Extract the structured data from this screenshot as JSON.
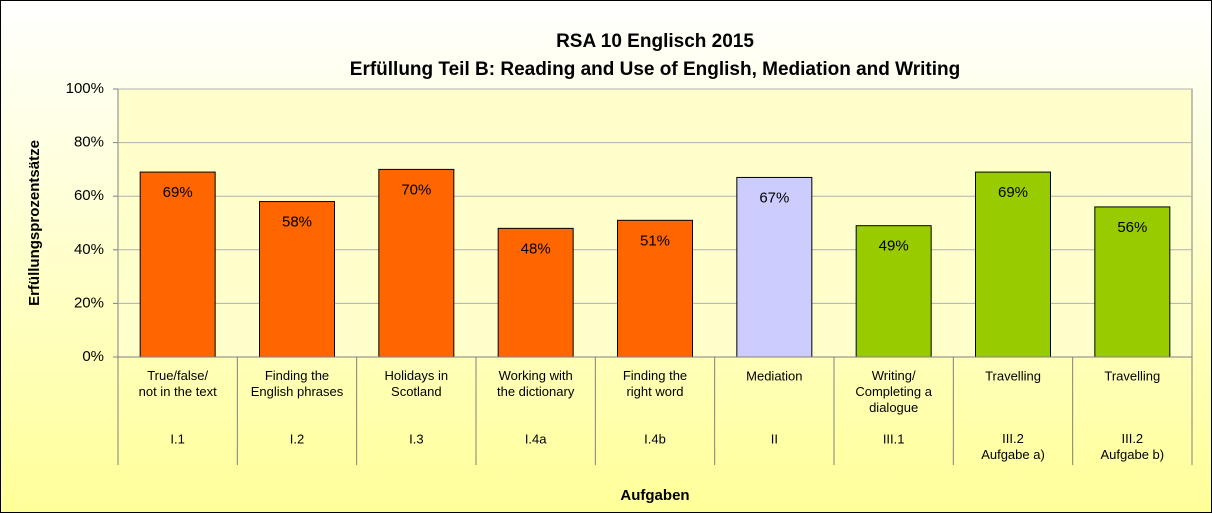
{
  "chart_data": {
    "type": "bar",
    "title": "RSA 10 Englisch 2015",
    "subtitle": "Erfüllung Teil B: Reading and Use of English, Mediation and Writing",
    "x_label": "Aufgaben",
    "y_label": "Erfüllungsprozentsätze",
    "categories": [
      "True/false/\nnot in the text",
      "Finding the\nEnglish phrases",
      "Holidays in\nScotland",
      "Working with\nthe dictionary",
      "Finding the\nright word",
      "Mediation",
      "Writing/\nCompleting a\ndialogue",
      "Travelling",
      "Travelling"
    ],
    "groups": [
      "I.1",
      "I.2",
      "I.3",
      "I.4a",
      "I.4b",
      "II",
      "III.1",
      "III.2\nAufgabe a)",
      "III.2\nAufgabe b)"
    ],
    "values": [
      69,
      58,
      70,
      48,
      51,
      67,
      49,
      69,
      56
    ],
    "value_labels": [
      "69%",
      "58%",
      "70%",
      "48%",
      "51%",
      "67%",
      "49%",
      "69%",
      "56%"
    ],
    "colors": [
      "#ff6600",
      "#ff6600",
      "#ff6600",
      "#ff6600",
      "#ff6600",
      "#ccccff",
      "#99cc00",
      "#99cc00",
      "#99cc00"
    ],
    "ylim": [
      0,
      100
    ],
    "yticks": [
      {
        "value": 0,
        "label": "0%"
      },
      {
        "value": 20,
        "label": "20%"
      },
      {
        "value": 40,
        "label": "40%"
      },
      {
        "value": 60,
        "label": "60%"
      },
      {
        "value": 80,
        "label": "80%"
      },
      {
        "value": 100,
        "label": "100%"
      }
    ],
    "grid": true
  }
}
